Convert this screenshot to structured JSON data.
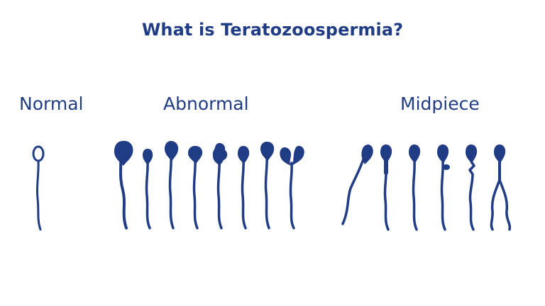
{
  "title": "What is Teratozoospermia?",
  "colors": {
    "ink": "#1f3c85",
    "background": "#ffffff"
  },
  "groups": [
    {
      "id": "normal",
      "label": "Normal"
    },
    {
      "id": "abnormal",
      "label": "Abnormal"
    },
    {
      "id": "midpiece",
      "label": "Midpiece"
    }
  ]
}
